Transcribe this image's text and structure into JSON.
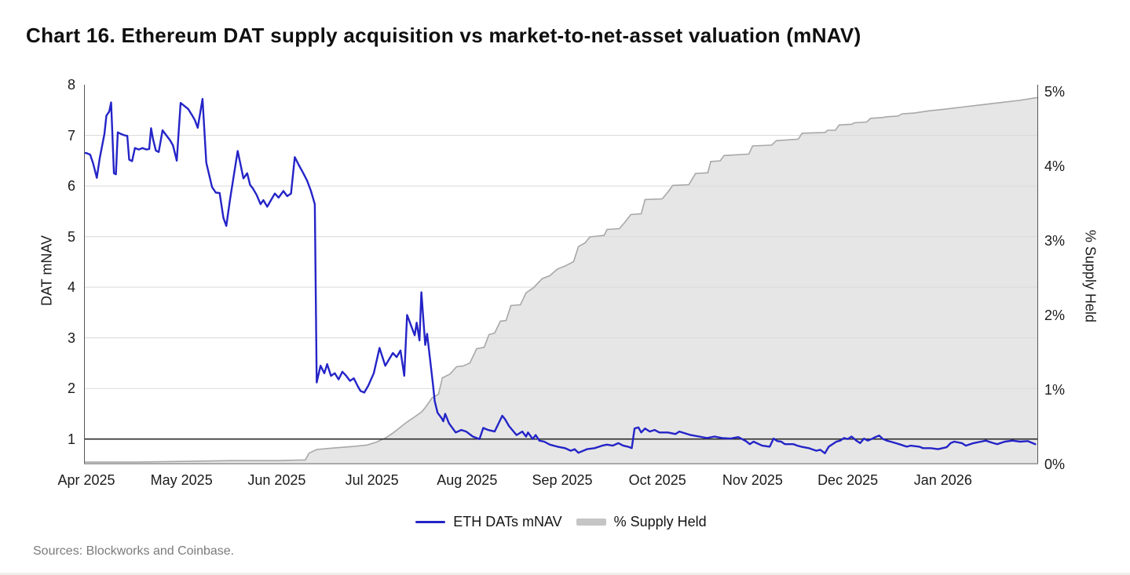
{
  "page": {
    "title": "Chart 16. Ethereum DAT supply acquisition vs market-to-net-asset valuation (mNAV)",
    "source": "Sources: Blockworks and Coinbase."
  },
  "chart_data": {
    "type": "line+area",
    "title": "Chart 16. Ethereum DAT supply acquisition vs market-to-net-asset valuation (mNAV)",
    "x_unit": "months since Apr 1 2025",
    "x_range": [
      0,
      10
    ],
    "x_tick_labels": [
      "Apr 2025",
      "May 2025",
      "Jun 2025",
      "Jul 2025",
      "Aug 2025",
      "Sep 2025",
      "Oct 2025",
      "Nov 2025",
      "Dec 2025",
      "Jan 2026"
    ],
    "grid": "horizontal",
    "left_axis": {
      "label": "DAT mNAV",
      "range": [
        0.5,
        8
      ],
      "ticks": [
        8,
        7,
        6,
        5,
        4,
        3,
        2,
        1
      ]
    },
    "right_axis": {
      "label": "% Supply Held",
      "range": [
        0,
        5.09
      ],
      "ticks": [
        5,
        4,
        3,
        2,
        1,
        0
      ],
      "tick_labels": [
        "5%",
        "4%",
        "3%",
        "2%",
        "1%",
        "0%"
      ]
    },
    "reference_line": {
      "axis": "left",
      "value": 1,
      "color": "#2b2b2b"
    },
    "colors": {
      "mnav_line": "#2424c8",
      "area_fill": "#e6e6e6",
      "area_stroke": "#a8a8a8",
      "gridline": "#dadada",
      "axis_line": "#555555",
      "bottom_axis": "#9a9a9a",
      "legend_area_swatch": "#c5c5c5"
    },
    "legend": [
      {
        "label": "ETH DATs mNAV",
        "swatch": "line"
      },
      {
        "label": "% Supply Held",
        "swatch": "area"
      }
    ],
    "series": [
      {
        "name": "ETH DATs mNAV",
        "type": "line",
        "axis": "left",
        "points": [
          [
            0,
            6.65
          ],
          [
            0.04,
            6.62
          ],
          [
            0.07,
            6.45
          ],
          [
            0.11,
            6.16
          ],
          [
            0.14,
            6.55
          ],
          [
            0.19,
            7.03
          ],
          [
            0.21,
            7.39
          ],
          [
            0.24,
            7.47
          ],
          [
            0.26,
            7.65
          ],
          [
            0.29,
            6.25
          ],
          [
            0.31,
            6.23
          ],
          [
            0.33,
            7.06
          ],
          [
            0.36,
            7.03
          ],
          [
            0.4,
            7.0
          ],
          [
            0.43,
            6.99
          ],
          [
            0.45,
            6.52
          ],
          [
            0.48,
            6.49
          ],
          [
            0.51,
            6.75
          ],
          [
            0.55,
            6.72
          ],
          [
            0.59,
            6.75
          ],
          [
            0.63,
            6.72
          ],
          [
            0.66,
            6.73
          ],
          [
            0.68,
            7.14
          ],
          [
            0.7,
            6.93
          ],
          [
            0.73,
            6.7
          ],
          [
            0.76,
            6.67
          ],
          [
            0.8,
            7.1
          ],
          [
            0.84,
            7.0
          ],
          [
            0.88,
            6.9
          ],
          [
            0.91,
            6.8
          ],
          [
            0.95,
            6.5
          ],
          [
            0.99,
            7.64
          ],
          [
            1.03,
            7.58
          ],
          [
            1.07,
            7.52
          ],
          [
            1.11,
            7.4
          ],
          [
            1.14,
            7.3
          ],
          [
            1.17,
            7.15
          ],
          [
            1.22,
            7.72
          ],
          [
            1.26,
            6.46
          ],
          [
            1.32,
            5.98
          ],
          [
            1.36,
            5.87
          ],
          [
            1.4,
            5.86
          ],
          [
            1.44,
            5.37
          ],
          [
            1.47,
            5.21
          ],
          [
            1.51,
            5.74
          ],
          [
            1.57,
            6.46
          ],
          [
            1.59,
            6.69
          ],
          [
            1.65,
            6.15
          ],
          [
            1.69,
            6.25
          ],
          [
            1.72,
            6.02
          ],
          [
            1.75,
            5.95
          ],
          [
            1.79,
            5.82
          ],
          [
            1.83,
            5.64
          ],
          [
            1.86,
            5.72
          ],
          [
            1.9,
            5.59
          ],
          [
            1.94,
            5.72
          ],
          [
            1.98,
            5.85
          ],
          [
            2.02,
            5.77
          ],
          [
            2.07,
            5.9
          ],
          [
            2.11,
            5.8
          ],
          [
            2.15,
            5.85
          ],
          [
            2.19,
            6.57
          ],
          [
            2.23,
            6.42
          ],
          [
            2.28,
            6.25
          ],
          [
            2.32,
            6.1
          ],
          [
            2.36,
            5.9
          ],
          [
            2.4,
            5.64
          ],
          [
            2.42,
            2.12
          ],
          [
            2.46,
            2.45
          ],
          [
            2.5,
            2.3
          ],
          [
            2.53,
            2.48
          ],
          [
            2.57,
            2.25
          ],
          [
            2.61,
            2.3
          ],
          [
            2.65,
            2.18
          ],
          [
            2.69,
            2.33
          ],
          [
            2.73,
            2.25
          ],
          [
            2.77,
            2.15
          ],
          [
            2.81,
            2.2
          ],
          [
            2.85,
            2.05
          ],
          [
            2.88,
            1.95
          ],
          [
            2.92,
            1.92
          ],
          [
            2.96,
            2.05
          ],
          [
            3.02,
            2.3
          ],
          [
            3.08,
            2.8
          ],
          [
            3.14,
            2.45
          ],
          [
            3.22,
            2.7
          ],
          [
            3.26,
            2.62
          ],
          [
            3.3,
            2.75
          ],
          [
            3.34,
            2.25
          ],
          [
            3.37,
            3.45
          ],
          [
            3.42,
            3.2
          ],
          [
            3.45,
            3.05
          ],
          [
            3.47,
            3.3
          ],
          [
            3.5,
            2.95
          ],
          [
            3.52,
            3.9
          ],
          [
            3.56,
            2.86
          ],
          [
            3.58,
            3.08
          ],
          [
            3.61,
            2.6
          ],
          [
            3.64,
            2.1
          ],
          [
            3.66,
            1.75
          ],
          [
            3.69,
            1.52
          ],
          [
            3.73,
            1.42
          ],
          [
            3.75,
            1.35
          ],
          [
            3.77,
            1.5
          ],
          [
            3.81,
            1.31
          ],
          [
            3.88,
            1.13
          ],
          [
            3.94,
            1.18
          ],
          [
            3.99,
            1.15
          ],
          [
            4.06,
            1.05
          ],
          [
            4.13,
            1.0
          ],
          [
            4.17,
            1.22
          ],
          [
            4.22,
            1.18
          ],
          [
            4.29,
            1.15
          ],
          [
            4.37,
            1.46
          ],
          [
            4.4,
            1.39
          ],
          [
            4.44,
            1.26
          ],
          [
            4.52,
            1.08
          ],
          [
            4.58,
            1.15
          ],
          [
            4.62,
            1.05
          ],
          [
            4.64,
            1.13
          ],
          [
            4.69,
            1.0
          ],
          [
            4.72,
            1.08
          ],
          [
            4.76,
            0.97
          ],
          [
            4.81,
            0.95
          ],
          [
            4.87,
            0.89
          ],
          [
            4.95,
            0.85
          ],
          [
            5.03,
            0.82
          ],
          [
            5.09,
            0.77
          ],
          [
            5.13,
            0.8
          ],
          [
            5.17,
            0.73
          ],
          [
            5.26,
            0.8
          ],
          [
            5.34,
            0.82
          ],
          [
            5.42,
            0.87
          ],
          [
            5.47,
            0.89
          ],
          [
            5.53,
            0.87
          ],
          [
            5.59,
            0.92
          ],
          [
            5.64,
            0.87
          ],
          [
            5.69,
            0.85
          ],
          [
            5.73,
            0.82
          ],
          [
            5.76,
            1.21
          ],
          [
            5.8,
            1.23
          ],
          [
            5.83,
            1.13
          ],
          [
            5.87,
            1.21
          ],
          [
            5.92,
            1.15
          ],
          [
            5.97,
            1.18
          ],
          [
            6.02,
            1.13
          ],
          [
            6.11,
            1.13
          ],
          [
            6.19,
            1.1
          ],
          [
            6.23,
            1.15
          ],
          [
            6.35,
            1.08
          ],
          [
            6.44,
            1.05
          ],
          [
            6.52,
            1.02
          ],
          [
            6.6,
            1.05
          ],
          [
            6.68,
            1.02
          ],
          [
            6.77,
            1.01
          ],
          [
            6.85,
            1.04
          ],
          [
            6.93,
            0.96
          ],
          [
            6.97,
            0.9
          ],
          [
            7.01,
            0.95
          ],
          [
            7.1,
            0.87
          ],
          [
            7.18,
            0.85
          ],
          [
            7.22,
            1.01
          ],
          [
            7.26,
            0.96
          ],
          [
            7.3,
            0.95
          ],
          [
            7.34,
            0.9
          ],
          [
            7.43,
            0.9
          ],
          [
            7.47,
            0.87
          ],
          [
            7.51,
            0.85
          ],
          [
            7.59,
            0.82
          ],
          [
            7.67,
            0.77
          ],
          [
            7.71,
            0.79
          ],
          [
            7.76,
            0.72
          ],
          [
            7.8,
            0.85
          ],
          [
            7.84,
            0.9
          ],
          [
            7.88,
            0.95
          ],
          [
            7.92,
            0.97
          ],
          [
            7.96,
            1.02
          ],
          [
            8.0,
            1.0
          ],
          [
            8.04,
            1.05
          ],
          [
            8.09,
            0.97
          ],
          [
            8.13,
            0.92
          ],
          [
            8.17,
            1.01
          ],
          [
            8.21,
            0.97
          ],
          [
            8.25,
            1.0
          ],
          [
            8.29,
            1.04
          ],
          [
            8.33,
            1.07
          ],
          [
            8.37,
            1.0
          ],
          [
            8.41,
            0.97
          ],
          [
            8.45,
            0.95
          ],
          [
            8.54,
            0.9
          ],
          [
            8.62,
            0.85
          ],
          [
            8.66,
            0.87
          ],
          [
            8.75,
            0.85
          ],
          [
            8.79,
            0.82
          ],
          [
            8.87,
            0.82
          ],
          [
            8.95,
            0.8
          ],
          [
            9.04,
            0.84
          ],
          [
            9.08,
            0.92
          ],
          [
            9.12,
            0.95
          ],
          [
            9.2,
            0.92
          ],
          [
            9.24,
            0.87
          ],
          [
            9.32,
            0.92
          ],
          [
            9.4,
            0.95
          ],
          [
            9.45,
            0.97
          ],
          [
            9.53,
            0.92
          ],
          [
            9.57,
            0.9
          ],
          [
            9.65,
            0.95
          ],
          [
            9.73,
            0.97
          ],
          [
            9.81,
            0.95
          ],
          [
            9.89,
            0.96
          ],
          [
            9.97,
            0.9
          ]
        ]
      },
      {
        "name": "% Supply Held",
        "type": "area",
        "axis": "right",
        "points": [
          [
            0,
            0.03
          ],
          [
            0.5,
            0.03
          ],
          [
            1.0,
            0.04
          ],
          [
            1.5,
            0.05
          ],
          [
            2.0,
            0.05
          ],
          [
            2.3,
            0.06
          ],
          [
            2.34,
            0.15
          ],
          [
            2.42,
            0.2
          ],
          [
            2.6,
            0.22
          ],
          [
            2.8,
            0.24
          ],
          [
            2.95,
            0.26
          ],
          [
            3.05,
            0.3
          ],
          [
            3.15,
            0.36
          ],
          [
            3.22,
            0.42
          ],
          [
            3.3,
            0.5
          ],
          [
            3.36,
            0.56
          ],
          [
            3.44,
            0.63
          ],
          [
            3.52,
            0.7
          ],
          [
            3.56,
            0.76
          ],
          [
            3.63,
            0.89
          ],
          [
            3.7,
            0.94
          ],
          [
            3.74,
            1.16
          ],
          [
            3.82,
            1.21
          ],
          [
            3.89,
            1.31
          ],
          [
            3.96,
            1.32
          ],
          [
            4.03,
            1.36
          ],
          [
            4.1,
            1.55
          ],
          [
            4.18,
            1.57
          ],
          [
            4.23,
            1.74
          ],
          [
            4.29,
            1.76
          ],
          [
            4.35,
            1.92
          ],
          [
            4.41,
            1.93
          ],
          [
            4.46,
            2.13
          ],
          [
            4.56,
            2.14
          ],
          [
            4.62,
            2.3
          ],
          [
            4.7,
            2.37
          ],
          [
            4.79,
            2.49
          ],
          [
            4.87,
            2.53
          ],
          [
            4.95,
            2.62
          ],
          [
            5.03,
            2.66
          ],
          [
            5.12,
            2.72
          ],
          [
            5.17,
            2.92
          ],
          [
            5.24,
            2.97
          ],
          [
            5.29,
            3.05
          ],
          [
            5.44,
            3.07
          ],
          [
            5.47,
            3.15
          ],
          [
            5.6,
            3.16
          ],
          [
            5.66,
            3.25
          ],
          [
            5.72,
            3.35
          ],
          [
            5.83,
            3.36
          ],
          [
            5.87,
            3.55
          ],
          [
            6.05,
            3.56
          ],
          [
            6.11,
            3.65
          ],
          [
            6.16,
            3.74
          ],
          [
            6.33,
            3.75
          ],
          [
            6.4,
            3.9
          ],
          [
            6.53,
            3.91
          ],
          [
            6.56,
            4.06
          ],
          [
            6.66,
            4.07
          ],
          [
            6.7,
            4.14
          ],
          [
            6.96,
            4.16
          ],
          [
            7.0,
            4.27
          ],
          [
            7.2,
            4.28
          ],
          [
            7.25,
            4.34
          ],
          [
            7.48,
            4.36
          ],
          [
            7.52,
            4.44
          ],
          [
            7.76,
            4.45
          ],
          [
            7.79,
            4.48
          ],
          [
            7.87,
            4.48
          ],
          [
            7.91,
            4.55
          ],
          [
            8.04,
            4.56
          ],
          [
            8.07,
            4.58
          ],
          [
            8.2,
            4.59
          ],
          [
            8.24,
            4.64
          ],
          [
            8.37,
            4.65
          ],
          [
            8.4,
            4.66
          ],
          [
            8.53,
            4.67
          ],
          [
            8.57,
            4.7
          ],
          [
            8.7,
            4.71
          ],
          [
            8.85,
            4.74
          ],
          [
            9.0,
            4.76
          ],
          [
            9.2,
            4.79
          ],
          [
            9.4,
            4.82
          ],
          [
            9.6,
            4.85
          ],
          [
            9.8,
            4.88
          ],
          [
            10.0,
            4.92
          ]
        ]
      }
    ]
  }
}
